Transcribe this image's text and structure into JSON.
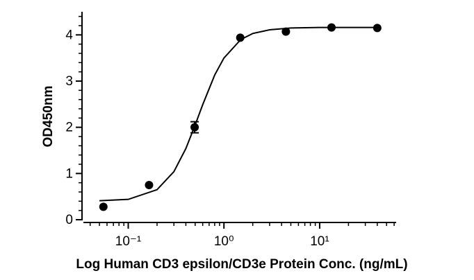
{
  "chart_data": {
    "type": "scatter",
    "xlabel": "Log  Human CD3 epsilon/CD3e Protein Conc. (ng/mL)",
    "ylabel": "OD450nm",
    "xscale": "log",
    "xlim": [
      0.034,
      63
    ],
    "ylim": [
      0,
      4.5
    ],
    "xticks": [
      {
        "value": 0.1,
        "label": "10⁻¹"
      },
      {
        "value": 1,
        "label": "10⁰"
      },
      {
        "value": 10,
        "label": "10¹"
      }
    ],
    "xminor_ticks": [
      0.04,
      0.05,
      0.06,
      0.07,
      0.08,
      0.09,
      0.2,
      0.3,
      0.4,
      0.5,
      0.6,
      0.7,
      0.8,
      0.9,
      2,
      3,
      4,
      5,
      6,
      7,
      8,
      9,
      20,
      30,
      40,
      50,
      60
    ],
    "yticks": [
      0,
      1,
      2,
      3,
      4
    ],
    "yminor_ticks": [
      0.2,
      0.4,
      0.6,
      0.8,
      1.2,
      1.4,
      1.6,
      1.8,
      2.2,
      2.4,
      2.6,
      2.8,
      3.2,
      3.4,
      3.6,
      3.8,
      4.2,
      4.4
    ],
    "color": "#000000",
    "x": [
      0.055,
      0.165,
      0.494,
      1.48,
      4.44,
      13.3,
      40
    ],
    "values": [
      0.28,
      0.75,
      2.0,
      3.94,
      4.07,
      4.16,
      4.15
    ],
    "errors": [
      null,
      null,
      0.12,
      null,
      null,
      null,
      null
    ],
    "fit": {
      "x": [
        0.05,
        0.1,
        0.2,
        0.3,
        0.4,
        0.5,
        0.6,
        0.8,
        1,
        1.5,
        2,
        3,
        5,
        10,
        40
      ],
      "values": [
        0.41,
        0.44,
        0.65,
        1.04,
        1.54,
        2.05,
        2.49,
        3.13,
        3.5,
        3.9,
        4.03,
        4.11,
        4.15,
        4.16,
        4.16
      ]
    }
  }
}
